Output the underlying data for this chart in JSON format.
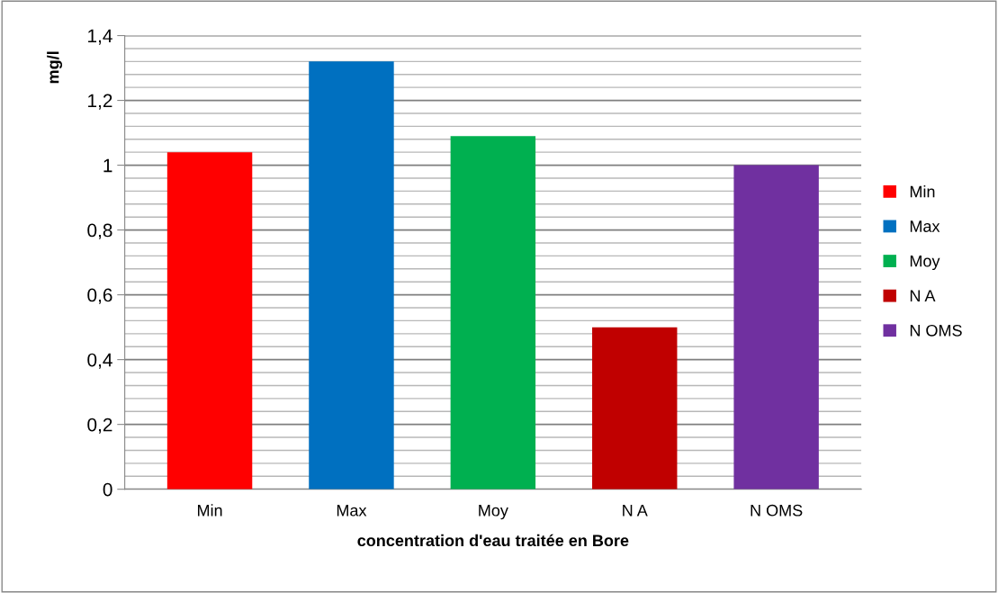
{
  "chart_data": {
    "type": "bar",
    "xlabel": "concentration d'eau traitée en Bore",
    "ylabel": "mg/l",
    "categories": [
      "Min",
      "Max",
      "Moy",
      "N A",
      "N OMS"
    ],
    "series": [
      {
        "name": "Min",
        "color": "#ff0000",
        "values": [
          1.04,
          null,
          null,
          null,
          null
        ]
      },
      {
        "name": "Max",
        "color": "#0070c0",
        "values": [
          null,
          1.32,
          null,
          null,
          null
        ]
      },
      {
        "name": "Moy",
        "color": "#00b050",
        "values": [
          null,
          null,
          1.09,
          null,
          null
        ]
      },
      {
        "name": "N A",
        "color": "#c00000",
        "values": [
          null,
          null,
          null,
          0.5,
          null
        ]
      },
      {
        "name": "N OMS",
        "color": "#7030a0",
        "values": [
          null,
          null,
          null,
          null,
          1.0
        ]
      }
    ],
    "ylim": [
      0,
      1.4
    ],
    "yticks": [
      0,
      {
        "value": 0.04,
        "label": null
      },
      {
        "value": 0.08,
        "label": null
      },
      {
        "value": 0.12,
        "label": null
      },
      {
        "value": 0.16,
        "label": null
      },
      {
        "value": 0.2,
        "label": "0,2"
      },
      {
        "value": 0.24,
        "label": null
      },
      {
        "value": 0.28,
        "label": null
      },
      {
        "value": 0.32,
        "label": null
      },
      {
        "value": 0.36,
        "label": null
      },
      {
        "value": 0.4,
        "label": "0,4"
      },
      {
        "value": 0.44,
        "label": null
      },
      {
        "value": 0.48,
        "label": null
      },
      {
        "value": 0.52,
        "label": null
      },
      {
        "value": 0.56,
        "label": null
      },
      {
        "value": 0.6,
        "label": "0,6"
      },
      {
        "value": 0.64,
        "label": null
      },
      {
        "value": 0.68,
        "label": null
      },
      {
        "value": 0.72,
        "label": null
      },
      {
        "value": 0.76,
        "label": null
      },
      {
        "value": 0.8,
        "label": "0,8"
      },
      {
        "value": 0.84,
        "label": null
      },
      {
        "value": 0.88,
        "label": null
      },
      {
        "value": 0.92,
        "label": null
      },
      {
        "value": 0.96,
        "label": null
      },
      1,
      {
        "value": 1.04,
        "label": null
      },
      {
        "value": 1.08,
        "label": null
      },
      {
        "value": 1.12,
        "label": null
      },
      {
        "value": 1.16,
        "label": null
      },
      {
        "value": 1.2,
        "label": "1,2"
      },
      {
        "value": 1.24,
        "label": null
      },
      {
        "value": 1.28,
        "label": null
      },
      {
        "value": 1.32,
        "label": null
      },
      {
        "value": 1.36,
        "label": null
      },
      {
        "value": 1.4,
        "label": "1,4"
      }
    ],
    "grid": "y",
    "legend": "right"
  }
}
